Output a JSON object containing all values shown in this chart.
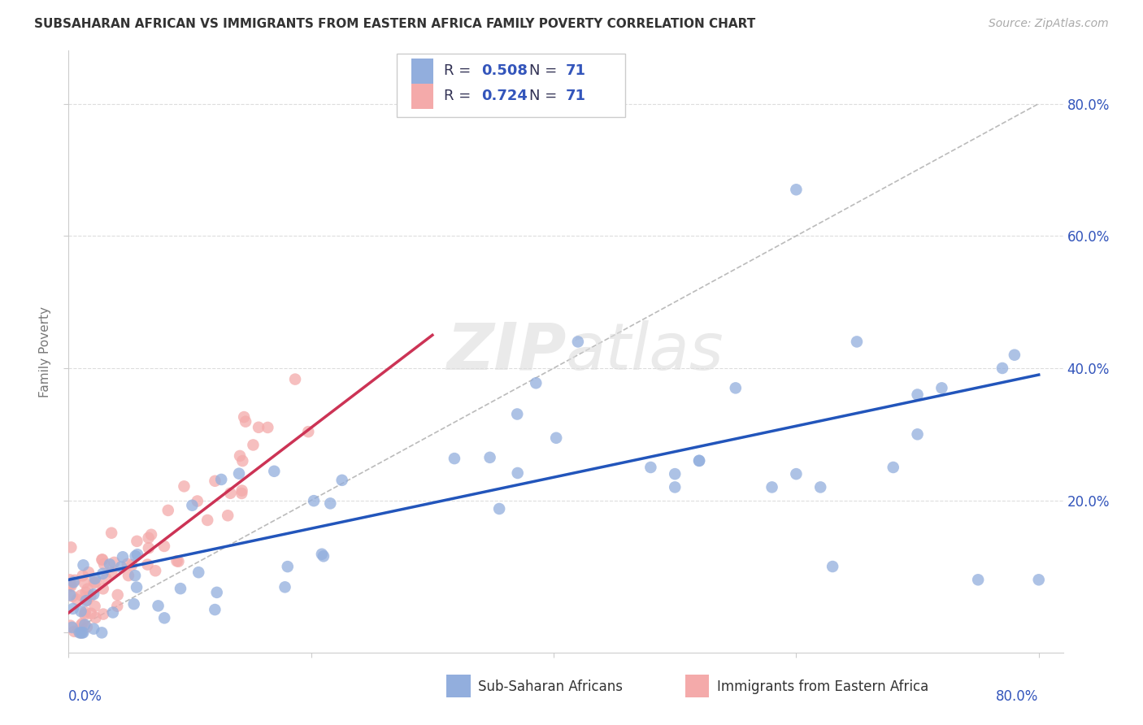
{
  "title": "SUBSAHARAN AFRICAN VS IMMIGRANTS FROM EASTERN AFRICA FAMILY POVERTY CORRELATION CHART",
  "source": "Source: ZipAtlas.com",
  "ylabel": "Family Poverty",
  "xlim": [
    0.0,
    0.82
  ],
  "ylim": [
    -0.03,
    0.88
  ],
  "yticks": [
    0.0,
    0.2,
    0.4,
    0.6,
    0.8
  ],
  "ytick_labels": [
    "",
    "20.0%",
    "40.0%",
    "60.0%",
    "80.0%"
  ],
  "xtick_positions": [
    0.0,
    0.2,
    0.4,
    0.6,
    0.8
  ],
  "blue_R": "0.508",
  "blue_N": "71",
  "pink_R": "0.724",
  "pink_N": "71",
  "blue_color": "#92AEDD",
  "pink_color": "#F4AAAA",
  "blue_line_color": "#2255BB",
  "pink_line_color": "#CC3355",
  "diagonal_color": "#BBBBBB",
  "grid_color": "#DDDDDD",
  "text_blue": "#3355BB",
  "text_dark": "#333355",
  "blue_line_x": [
    0.0,
    0.8
  ],
  "blue_line_y": [
    0.08,
    0.39
  ],
  "pink_line_x": [
    0.0,
    0.3
  ],
  "pink_line_y": [
    0.03,
    0.45
  ],
  "diag_line_x": [
    0.0,
    0.8
  ],
  "diag_line_y": [
    0.0,
    0.8
  ]
}
